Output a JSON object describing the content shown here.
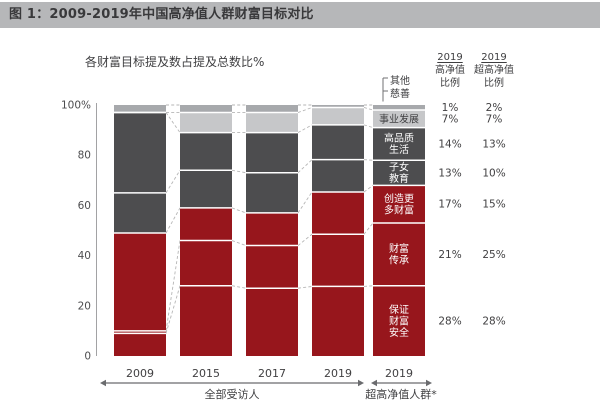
{
  "header": {
    "title": "图 1：2009-2019年中国高净值人群财富目标对比"
  },
  "chart": {
    "subtitle": "各财富目标提及数占提及总数比%",
    "annotations": {
      "other": "其他",
      "charity": "慈善"
    },
    "right_columns": {
      "hnw_header": {
        "year": "2019",
        "name": "高净值",
        "label": "比例"
      },
      "uhnw_header": {
        "year": "2019",
        "name": "超高净值",
        "label": "比例"
      }
    },
    "x_groups": [
      {
        "label": "全部受访人"
      },
      {
        "label": "超高净值人群*"
      }
    ]
  },
  "chart_data": {
    "type": "bar",
    "subtype": "stacked-percent",
    "title": "图 1：2009-2019年中国高净值人群财富目标对比",
    "ylabel": "各财富目标提及数占提及总数比%",
    "ylim": [
      0,
      100
    ],
    "grid": false,
    "y_ticks": [
      {
        "value": 100,
        "label": "100%"
      },
      {
        "value": 80,
        "label": "80"
      },
      {
        "value": 60,
        "label": "60"
      },
      {
        "value": 40,
        "label": "40"
      },
      {
        "value": 20,
        "label": "20"
      },
      {
        "value": 0,
        "label": "0"
      }
    ],
    "categories_bottom_to_top": [
      "保证财富安全",
      "财富传承",
      "创造更多财富",
      "子女教育",
      "高品质生活",
      "事业发展",
      "其他/慈善"
    ],
    "category_names_en": [
      "secure-wealth",
      "wealth-inheritance",
      "create-more-wealth",
      "children-education",
      "quality-life",
      "career-development",
      "other-charity"
    ],
    "category_color_roles": [
      "red",
      "red",
      "red",
      "dark",
      "dark",
      "light",
      "strip"
    ],
    "estimated_years": [
      "2009",
      "2015",
      "2017"
    ],
    "bars": [
      {
        "year": "2009",
        "group": 0,
        "values": [
          9,
          1,
          39,
          16,
          32,
          0,
          3
        ]
      },
      {
        "year": "2015",
        "group": 0,
        "values": [
          28,
          18,
          13,
          15,
          15,
          8,
          3
        ]
      },
      {
        "year": "2017",
        "group": 0,
        "values": [
          27,
          17,
          13,
          16,
          16,
          8,
          3
        ]
      },
      {
        "year": "2019",
        "group": 0,
        "values": [
          28,
          21,
          17,
          13,
          14,
          7,
          1
        ]
      },
      {
        "year": "2019",
        "group": 1,
        "values": [
          28,
          25,
          15,
          10,
          13,
          7,
          2
        ]
      }
    ],
    "segment_labels_bar5": [
      {
        "cat": "保证财富安全",
        "lines": [
          "保证",
          "财富",
          "安全"
        ],
        "text": "white"
      },
      {
        "cat": "财富传承",
        "lines": [
          "财富",
          "传承"
        ],
        "text": "white"
      },
      {
        "cat": "创造更多财富",
        "lines": [
          "创造更",
          "多财富"
        ],
        "text": "white"
      },
      {
        "cat": "子女教育",
        "lines": [
          "子女",
          "教育"
        ],
        "text": "white"
      },
      {
        "cat": "高品质生活",
        "lines": [
          "高品质",
          "生活"
        ],
        "text": "white"
      },
      {
        "cat": "事业发展",
        "lines": [
          "事业发展"
        ],
        "text": "dark"
      }
    ],
    "value_rows_top_to_bottom": [
      {
        "category": "其他/慈善",
        "hnw": "1%",
        "uhnw": "2%"
      },
      {
        "category": "事业发展",
        "hnw": "7%",
        "uhnw": "7%"
      },
      {
        "category": "高品质生活",
        "hnw": "14%",
        "uhnw": "13%"
      },
      {
        "category": "子女教育",
        "hnw": "13%",
        "uhnw": "10%"
      },
      {
        "category": "创造更多财富",
        "hnw": "17%",
        "uhnw": "15%"
      },
      {
        "category": "财富传承",
        "hnw": "21%",
        "uhnw": "25%"
      },
      {
        "category": "保证财富安全",
        "hnw": "28%",
        "uhnw": "28%"
      }
    ],
    "colors": {
      "red": "#97161c",
      "dark": "#4d4d4f",
      "light": "#c6c7c9",
      "strip": "#a7a9ac",
      "band_bg": "#b6b7b9",
      "text_dark": "#3e3e40",
      "text_gray": "#4d4d4f",
      "value_text": "#414042",
      "connector": "#b6b6b6",
      "arrow": "#6a6b6e"
    }
  }
}
